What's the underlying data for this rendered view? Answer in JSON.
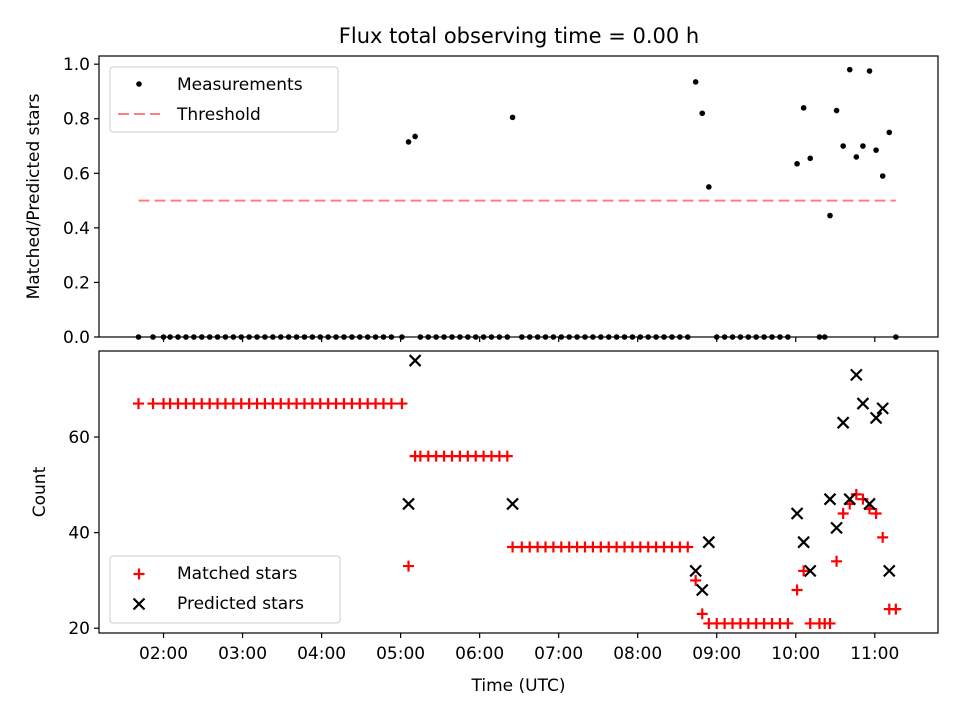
{
  "title": "Flux total observing time = 0.00 h",
  "colors": {
    "measurement": "#000000",
    "threshold": "#ff8080",
    "matched": "#ff0000",
    "predicted": "#000000"
  },
  "chart_data": [
    {
      "type": "scatter",
      "panel": "top",
      "ylabel": "Matched/Predicted stars",
      "ylim": [
        0,
        1.03
      ],
      "yticks": [
        0.0,
        0.2,
        0.4,
        0.6,
        0.8,
        1.0
      ],
      "ytick_labels": [
        "0.0",
        "0.2",
        "0.4",
        "0.6",
        "0.8",
        "1.0"
      ],
      "xlim": [
        "01:11",
        "11:48"
      ],
      "grid": false,
      "legend_position": "top-left",
      "series": [
        {
          "name": "Measurements",
          "marker": "dot",
          "points": [
            [
              "01:41",
              0
            ],
            [
              "01:52",
              0
            ],
            [
              "02:00",
              0
            ],
            [
              "02:05",
              0
            ],
            [
              "02:11",
              0
            ],
            [
              "02:17",
              0
            ],
            [
              "02:23",
              0
            ],
            [
              "02:29",
              0
            ],
            [
              "02:35",
              0
            ],
            [
              "02:41",
              0
            ],
            [
              "02:47",
              0
            ],
            [
              "02:53",
              0
            ],
            [
              "02:59",
              0
            ],
            [
              "03:05",
              0
            ],
            [
              "03:11",
              0
            ],
            [
              "03:17",
              0
            ],
            [
              "03:23",
              0
            ],
            [
              "03:29",
              0
            ],
            [
              "03:35",
              0
            ],
            [
              "03:41",
              0
            ],
            [
              "03:47",
              0
            ],
            [
              "03:53",
              0
            ],
            [
              "03:59",
              0
            ],
            [
              "04:05",
              0
            ],
            [
              "04:11",
              0
            ],
            [
              "04:17",
              0
            ],
            [
              "04:23",
              0
            ],
            [
              "04:29",
              0
            ],
            [
              "04:35",
              0
            ],
            [
              "04:41",
              0
            ],
            [
              "04:47",
              0
            ],
            [
              "04:53",
              0
            ],
            [
              "05:01",
              0
            ],
            [
              "05:06",
              0.715
            ],
            [
              "05:11",
              0.735
            ],
            [
              "05:15",
              0
            ],
            [
              "05:21",
              0
            ],
            [
              "05:27",
              0
            ],
            [
              "05:33",
              0
            ],
            [
              "05:39",
              0
            ],
            [
              "05:45",
              0
            ],
            [
              "05:51",
              0
            ],
            [
              "05:57",
              0
            ],
            [
              "06:03",
              0
            ],
            [
              "06:09",
              0
            ],
            [
              "06:15",
              0
            ],
            [
              "06:21",
              0
            ],
            [
              "06:25",
              0.805
            ],
            [
              "06:32",
              0
            ],
            [
              "06:38",
              0
            ],
            [
              "06:44",
              0
            ],
            [
              "06:50",
              0
            ],
            [
              "06:56",
              0
            ],
            [
              "07:02",
              0
            ],
            [
              "07:08",
              0
            ],
            [
              "07:14",
              0
            ],
            [
              "07:20",
              0
            ],
            [
              "07:26",
              0
            ],
            [
              "07:32",
              0
            ],
            [
              "07:38",
              0
            ],
            [
              "07:44",
              0
            ],
            [
              "07:50",
              0
            ],
            [
              "07:56",
              0
            ],
            [
              "08:02",
              0
            ],
            [
              "08:08",
              0
            ],
            [
              "08:14",
              0
            ],
            [
              "08:20",
              0
            ],
            [
              "08:26",
              0
            ],
            [
              "08:32",
              0
            ],
            [
              "08:38",
              0
            ],
            [
              "08:44",
              0.935
            ],
            [
              "08:49",
              0.82
            ],
            [
              "08:54",
              0.55
            ],
            [
              "09:00",
              0
            ],
            [
              "09:06",
              0
            ],
            [
              "09:12",
              0
            ],
            [
              "09:18",
              0
            ],
            [
              "09:24",
              0
            ],
            [
              "09:30",
              0
            ],
            [
              "09:36",
              0
            ],
            [
              "09:42",
              0
            ],
            [
              "09:48",
              0
            ],
            [
              "09:54",
              0
            ],
            [
              "10:01",
              0.635
            ],
            [
              "10:06",
              0.84
            ],
            [
              "10:11",
              0.655
            ],
            [
              "10:18",
              0
            ],
            [
              "10:22",
              0
            ],
            [
              "10:26",
              0.445
            ],
            [
              "10:31",
              0.83
            ],
            [
              "10:36",
              0.7
            ],
            [
              "10:41",
              0.98
            ],
            [
              "10:46",
              0.66
            ],
            [
              "10:51",
              0.7
            ],
            [
              "10:56",
              0.975
            ],
            [
              "11:01",
              0.685
            ],
            [
              "11:06",
              0.59
            ],
            [
              "11:11",
              0.75
            ],
            [
              "11:16",
              0
            ]
          ]
        },
        {
          "name": "Threshold",
          "style": "dashed",
          "points": [
            [
              "01:41",
              0.5
            ],
            [
              "11:16",
              0.5
            ]
          ]
        }
      ]
    },
    {
      "type": "scatter",
      "panel": "bottom",
      "xlabel": "Time (UTC)",
      "ylabel": "Count",
      "ylim": [
        19,
        78
      ],
      "yticks": [
        20,
        40,
        60
      ],
      "ytick_labels": [
        "20",
        "40",
        "60"
      ],
      "xlim": [
        "01:11",
        "11:48"
      ],
      "xticks": [
        "02:00",
        "03:00",
        "04:00",
        "05:00",
        "06:00",
        "07:00",
        "08:00",
        "09:00",
        "10:00",
        "11:00"
      ],
      "xtick_labels": [
        "02:00",
        "03:00",
        "04:00",
        "05:00",
        "06:00",
        "07:00",
        "08:00",
        "09:00",
        "10:00",
        "11:00"
      ],
      "grid": false,
      "legend_position": "bottom-left",
      "series": [
        {
          "name": "Matched stars",
          "marker": "plus",
          "points": [
            [
              "01:41",
              67
            ],
            [
              "01:52",
              67
            ],
            [
              "02:00",
              67
            ],
            [
              "02:05",
              67
            ],
            [
              "02:11",
              67
            ],
            [
              "02:17",
              67
            ],
            [
              "02:23",
              67
            ],
            [
              "02:29",
              67
            ],
            [
              "02:35",
              67
            ],
            [
              "02:41",
              67
            ],
            [
              "02:47",
              67
            ],
            [
              "02:53",
              67
            ],
            [
              "02:59",
              67
            ],
            [
              "03:05",
              67
            ],
            [
              "03:11",
              67
            ],
            [
              "03:17",
              67
            ],
            [
              "03:23",
              67
            ],
            [
              "03:29",
              67
            ],
            [
              "03:35",
              67
            ],
            [
              "03:41",
              67
            ],
            [
              "03:47",
              67
            ],
            [
              "03:53",
              67
            ],
            [
              "03:59",
              67
            ],
            [
              "04:05",
              67
            ],
            [
              "04:11",
              67
            ],
            [
              "04:17",
              67
            ],
            [
              "04:23",
              67
            ],
            [
              "04:29",
              67
            ],
            [
              "04:35",
              67
            ],
            [
              "04:41",
              67
            ],
            [
              "04:47",
              67
            ],
            [
              "04:53",
              67
            ],
            [
              "05:01",
              67
            ],
            [
              "05:06",
              33
            ],
            [
              "05:11",
              56
            ],
            [
              "05:15",
              56
            ],
            [
              "05:21",
              56
            ],
            [
              "05:27",
              56
            ],
            [
              "05:33",
              56
            ],
            [
              "05:39",
              56
            ],
            [
              "05:45",
              56
            ],
            [
              "05:51",
              56
            ],
            [
              "05:57",
              56
            ],
            [
              "06:03",
              56
            ],
            [
              "06:09",
              56
            ],
            [
              "06:15",
              56
            ],
            [
              "06:21",
              56
            ],
            [
              "06:25",
              37
            ],
            [
              "06:32",
              37
            ],
            [
              "06:38",
              37
            ],
            [
              "06:44",
              37
            ],
            [
              "06:50",
              37
            ],
            [
              "06:56",
              37
            ],
            [
              "07:02",
              37
            ],
            [
              "07:08",
              37
            ],
            [
              "07:14",
              37
            ],
            [
              "07:20",
              37
            ],
            [
              "07:26",
              37
            ],
            [
              "07:32",
              37
            ],
            [
              "07:38",
              37
            ],
            [
              "07:44",
              37
            ],
            [
              "07:50",
              37
            ],
            [
              "07:56",
              37
            ],
            [
              "08:02",
              37
            ],
            [
              "08:08",
              37
            ],
            [
              "08:14",
              37
            ],
            [
              "08:20",
              37
            ],
            [
              "08:26",
              37
            ],
            [
              "08:32",
              37
            ],
            [
              "08:38",
              37
            ],
            [
              "08:44",
              30
            ],
            [
              "08:49",
              23
            ],
            [
              "08:54",
              21
            ],
            [
              "09:00",
              21
            ],
            [
              "09:06",
              21
            ],
            [
              "09:12",
              21
            ],
            [
              "09:18",
              21
            ],
            [
              "09:24",
              21
            ],
            [
              "09:30",
              21
            ],
            [
              "09:36",
              21
            ],
            [
              "09:42",
              21
            ],
            [
              "09:48",
              21
            ],
            [
              "09:54",
              21
            ],
            [
              "10:01",
              28
            ],
            [
              "10:06",
              32
            ],
            [
              "10:11",
              21
            ],
            [
              "10:18",
              21
            ],
            [
              "10:22",
              21
            ],
            [
              "10:26",
              21
            ],
            [
              "10:31",
              34
            ],
            [
              "10:36",
              44
            ],
            [
              "10:41",
              46
            ],
            [
              "10:46",
              48
            ],
            [
              "10:51",
              47
            ],
            [
              "10:56",
              45
            ],
            [
              "11:01",
              44
            ],
            [
              "11:06",
              39
            ],
            [
              "11:11",
              24
            ],
            [
              "11:16",
              24
            ]
          ]
        },
        {
          "name": "Predicted stars",
          "marker": "x",
          "points": [
            [
              "05:06",
              46
            ],
            [
              "05:11",
              76
            ],
            [
              "06:25",
              46
            ],
            [
              "08:44",
              32
            ],
            [
              "08:49",
              28
            ],
            [
              "08:54",
              38
            ],
            [
              "10:01",
              44
            ],
            [
              "10:06",
              38
            ],
            [
              "10:11",
              32
            ],
            [
              "10:26",
              47
            ],
            [
              "10:31",
              41
            ],
            [
              "10:36",
              63
            ],
            [
              "10:41",
              47
            ],
            [
              "10:46",
              73
            ],
            [
              "10:51",
              67
            ],
            [
              "10:56",
              46
            ],
            [
              "11:01",
              64
            ],
            [
              "11:06",
              66
            ],
            [
              "11:11",
              32
            ]
          ]
        }
      ]
    }
  ]
}
